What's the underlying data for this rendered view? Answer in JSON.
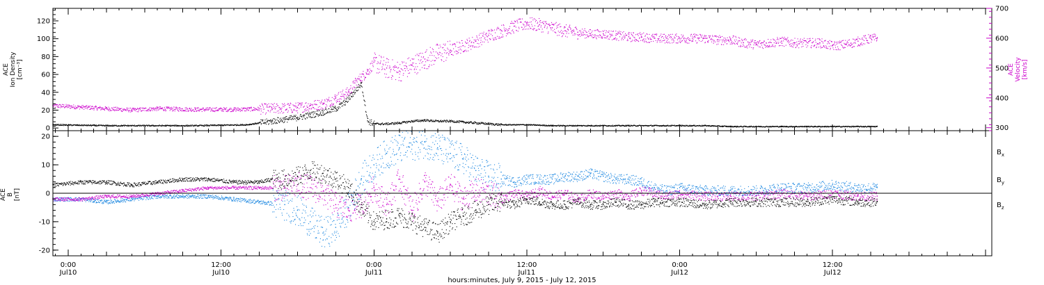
{
  "colors": {
    "density": "#000000",
    "velocity": "#cc00cc",
    "bx": "#000000",
    "by": "#1a86e0",
    "bz": "#cc00cc"
  },
  "x_axis": {
    "caption": "hours:minutes, July  9, 2015 - July 12, 2015",
    "ticks": [
      {
        "t": 0,
        "time": "0:00",
        "day": "Jul10"
      },
      {
        "t": 12,
        "time": "12:00",
        "day": "Jul10"
      },
      {
        "t": 24,
        "time": "0:00",
        "day": "Jul11"
      },
      {
        "t": 36,
        "time": "12:00",
        "day": "Jul11"
      },
      {
        "t": 48,
        "time": "0:00",
        "day": "Jul12"
      },
      {
        "t": 60,
        "time": "12:00",
        "day": "Jul12"
      }
    ]
  },
  "chart_data": [
    {
      "type": "scatter",
      "name": "plasma-panel",
      "xlim": [
        -1.2,
        72.5
      ],
      "ylabel_left": [
        "ACE",
        "Ion Density",
        "[cm⁻³]"
      ],
      "ylabel_right": [
        "ACE",
        "Velocity",
        "[km/s]"
      ],
      "left_ylim": [
        -3,
        134
      ],
      "left_ticks": [
        0,
        20,
        40,
        60,
        80,
        100,
        120
      ],
      "right_ylim": [
        290,
        700
      ],
      "right_ticks": [
        300,
        400,
        500,
        600,
        700
      ],
      "series": [
        {
          "axis": "left",
          "x": [
            -1.2,
            3,
            6,
            10,
            14,
            16,
            17,
            18,
            19,
            20,
            21,
            21.8,
            22.4,
            23,
            23.5,
            24,
            25,
            26,
            27,
            28,
            29,
            30,
            31,
            32,
            33,
            34,
            36,
            38,
            40,
            42,
            44,
            46,
            48,
            50,
            52,
            54,
            56,
            58,
            60,
            62,
            63.5
          ],
          "y": [
            4,
            3,
            3,
            3,
            4,
            8,
            10,
            12,
            15,
            18,
            22,
            30,
            40,
            50,
            8,
            5,
            5,
            6,
            8,
            9,
            8,
            8,
            7,
            6,
            5,
            4,
            4,
            3,
            3,
            3,
            3,
            3,
            3,
            3,
            2,
            2,
            2,
            2,
            2,
            2,
            2
          ]
        },
        {
          "axis": "right",
          "x": [
            -1.2,
            1,
            3,
            5,
            7,
            10,
            13,
            16,
            18,
            19,
            20,
            21,
            22,
            22.5,
            23,
            23.5,
            24,
            25,
            26,
            27,
            28,
            29,
            30,
            31,
            32,
            33,
            34,
            35,
            36,
            37,
            38,
            39,
            40,
            41,
            42,
            43,
            44,
            45,
            46,
            47,
            48,
            49,
            50,
            51,
            52,
            53,
            54,
            55,
            56,
            57,
            58,
            59,
            60,
            61,
            62,
            63,
            63.5
          ],
          "y": [
            375,
            370,
            365,
            360,
            365,
            362,
            362,
            365,
            368,
            375,
            380,
            400,
            420,
            450,
            470,
            490,
            520,
            500,
            490,
            510,
            530,
            550,
            560,
            575,
            590,
            610,
            625,
            640,
            650,
            645,
            635,
            625,
            620,
            615,
            615,
            610,
            605,
            605,
            600,
            600,
            600,
            600,
            600,
            595,
            595,
            585,
            580,
            585,
            590,
            585,
            585,
            585,
            575,
            580,
            590,
            600,
            600
          ]
        }
      ]
    },
    {
      "type": "scatter",
      "name": "magnetic-field-panel",
      "xlim": [
        -1.2,
        72.5
      ],
      "ylabel_left": [
        "ACE",
        "B",
        "[nT]"
      ],
      "left_ylim": [
        -22,
        22
      ],
      "left_ticks": [
        -20,
        -10,
        0,
        10,
        20
      ],
      "legend_position": "right",
      "series": [
        {
          "name": "Bx",
          "legend": "B",
          "legend_sub": "x",
          "x": [
            -1.2,
            1,
            3,
            5,
            7,
            9,
            11,
            13,
            15,
            16,
            17,
            18,
            19,
            20,
            21,
            22,
            23,
            24,
            25,
            26,
            27,
            28,
            29,
            30,
            31,
            32,
            33,
            34,
            35,
            36,
            37,
            38,
            39,
            40,
            41,
            42,
            43,
            44,
            45,
            46,
            47,
            48,
            50,
            52,
            54,
            56,
            58,
            60,
            62,
            63.5
          ],
          "y": [
            3,
            4,
            4,
            3,
            4,
            5,
            5,
            4,
            4,
            5,
            5,
            6,
            8,
            7,
            5,
            2,
            -5,
            -10,
            -9,
            -8,
            -10,
            -12,
            -14,
            -10,
            -8,
            -6,
            -4,
            -3,
            -4,
            -2,
            -3,
            -4,
            -4,
            -3,
            -4,
            -4,
            -3,
            -4,
            -4,
            -3,
            -3,
            -3,
            -4,
            -3,
            -3,
            -3,
            -3,
            -2,
            -3,
            -3
          ]
        },
        {
          "name": "By",
          "legend": "B",
          "legend_sub": "y",
          "x": [
            -1.2,
            1,
            3,
            5,
            7,
            9,
            11,
            13,
            15,
            17,
            18,
            19,
            20,
            21,
            22,
            23,
            24,
            25,
            26,
            27,
            28,
            29,
            30,
            31,
            32,
            33,
            34,
            35,
            36,
            37,
            38,
            39,
            40,
            41,
            42,
            43,
            44,
            45,
            46,
            47,
            48,
            50,
            52,
            54,
            56,
            58,
            60,
            62,
            63.5
          ],
          "y": [
            -2,
            -2,
            -3,
            -2,
            -1,
            -1,
            -1,
            -2,
            -3,
            -4,
            -6,
            -10,
            -14,
            -12,
            -5,
            5,
            10,
            14,
            16,
            17,
            18,
            16,
            14,
            12,
            8,
            6,
            5,
            4,
            5,
            5,
            5,
            6,
            6,
            7,
            6,
            5,
            5,
            4,
            2,
            1,
            2,
            1,
            1,
            1,
            2,
            2,
            3,
            2,
            2
          ]
        },
        {
          "name": "Bz",
          "legend": "B",
          "legend_sub": "z",
          "x": [
            -1.2,
            1,
            3,
            5,
            7,
            9,
            11,
            13,
            15,
            17,
            18,
            19,
            20,
            21,
            22,
            23,
            24,
            25,
            26,
            27,
            28,
            29,
            30,
            31,
            32,
            33,
            34,
            35,
            36,
            37,
            38,
            39,
            40,
            41,
            42,
            43,
            44,
            45,
            46,
            47,
            48,
            50,
            52,
            54,
            56,
            58,
            60,
            62,
            63.5
          ],
          "y": [
            -2,
            -2,
            -1,
            -1,
            0,
            1,
            2,
            2,
            2,
            2,
            3,
            2,
            0,
            -4,
            -6,
            -4,
            2,
            -4,
            5,
            -6,
            4,
            -3,
            3,
            -2,
            1,
            0,
            -2,
            0,
            -1,
            1,
            -1,
            0,
            -2,
            0,
            -1,
            0,
            -1,
            1,
            0,
            -1,
            0,
            -1,
            -1,
            -1,
            0,
            -1,
            0,
            -1,
            -1
          ]
        }
      ]
    }
  ]
}
